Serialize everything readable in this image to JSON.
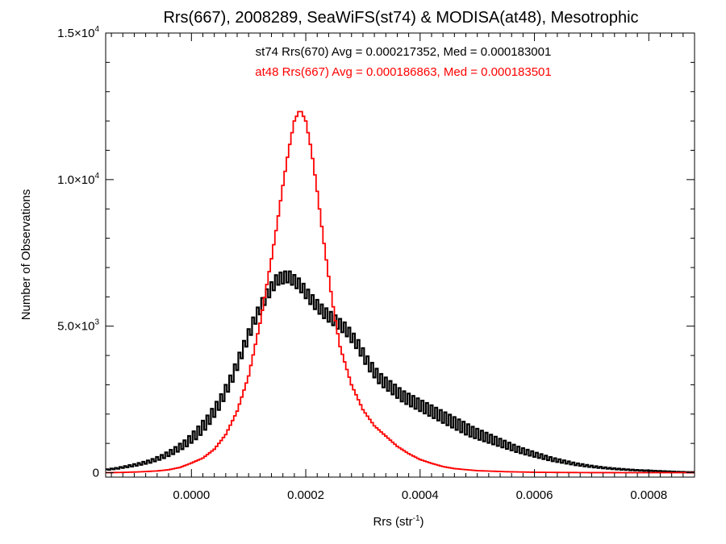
{
  "chart_data": {
    "type": "line",
    "title": "Rrs(667), 2008289, SeaWiFS(st74) & MODISA(at48), Mesotrophic",
    "xlabel": "Rrs (str",
    "xlabel_sup": "-1",
    "xlabel_close": ")",
    "ylabel": "Number of Observations",
    "xlim": [
      -0.00015,
      0.00088
    ],
    "ylim": [
      -150,
      15000
    ],
    "x_ticks": [
      {
        "value": 0.0,
        "label": "0.0000"
      },
      {
        "value": 0.0002,
        "label": "0.0002"
      },
      {
        "value": 0.0004,
        "label": "0.0004"
      },
      {
        "value": 0.0006,
        "label": "0.0006"
      },
      {
        "value": 0.0008,
        "label": "0.0008"
      }
    ],
    "y_ticks": [
      {
        "value": 0,
        "mantissa": "0",
        "exp": ""
      },
      {
        "value": 5000,
        "mantissa": "5.0×10",
        "exp": "3"
      },
      {
        "value": 10000,
        "mantissa": "1.0×10",
        "exp": "4"
      },
      {
        "value": 15000,
        "mantissa": "1.5×10",
        "exp": "4"
      }
    ],
    "grid": false,
    "annotations": [
      {
        "text": "st74 Rrs(670) Avg = 0.000217352, Med = 0.000183001",
        "color": "#000000"
      },
      {
        "text": "at48 Rrs(667) Avg = 0.000186863, Med = 0.000183501",
        "color": "#ff0000"
      }
    ],
    "series": [
      {
        "color": "#000000",
        "bin_width": 4e-06,
        "x": [
          -0.00015,
          -0.00013,
          -0.00011,
          -9e-05,
          -7e-05,
          -5e-05,
          -3e-05,
          -1e-05,
          1e-05,
          3e-05,
          5e-05,
          7e-05,
          9e-05,
          0.00011,
          0.00013,
          0.00015,
          0.00017,
          0.00019,
          0.00021,
          0.00023,
          0.00025,
          0.00027,
          0.00029,
          0.00031,
          0.00033,
          0.00035,
          0.00037,
          0.00039,
          0.00041,
          0.00043,
          0.00045,
          0.00047,
          0.00049,
          0.00051,
          0.00053,
          0.00055,
          0.00057,
          0.00059,
          0.00061,
          0.00063,
          0.00065,
          0.00067,
          0.00069,
          0.00071,
          0.00073,
          0.00075,
          0.00077,
          0.00079,
          0.00081,
          0.00083,
          0.00085,
          0.00087
        ],
        "y": [
          100,
          150,
          220,
          300,
          400,
          550,
          750,
          1000,
          1350,
          1800,
          2400,
          3200,
          4200,
          5200,
          6000,
          6600,
          6700,
          6400,
          5900,
          5500,
          5200,
          4900,
          4400,
          3700,
          3200,
          2900,
          2600,
          2400,
          2200,
          2000,
          1800,
          1600,
          1400,
          1250,
          1100,
          950,
          800,
          680,
          570,
          460,
          380,
          300,
          240,
          190,
          150,
          120,
          95,
          75,
          60,
          45,
          30,
          20
        ],
        "jitter": 200
      },
      {
        "color": "#ff0000",
        "bin_width": 4e-06,
        "x": [
          -0.00015,
          -0.00012,
          -9e-05,
          -6e-05,
          -4e-05,
          -2e-05,
          0.0,
          2e-05,
          4e-05,
          6e-05,
          8e-05,
          0.0001,
          0.00012,
          0.00014,
          0.00015,
          0.00016,
          0.00017,
          0.00018,
          0.00019,
          0.0002,
          0.00021,
          0.00022,
          0.00023,
          0.00024,
          0.00025,
          0.00026,
          0.00028,
          0.0003,
          0.00032,
          0.00034,
          0.00036,
          0.00038,
          0.0004,
          0.00042,
          0.00044,
          0.00046,
          0.0005,
          0.00055,
          0.0006,
          0.00065,
          0.0007,
          0.00088
        ],
        "y": [
          0,
          10,
          30,
          60,
          100,
          180,
          330,
          500,
          800,
          1300,
          2100,
          3300,
          5100,
          7300,
          8500,
          9800,
          11000,
          12000,
          12400,
          12000,
          11000,
          9600,
          8100,
          6700,
          5400,
          4300,
          3000,
          2150,
          1600,
          1250,
          900,
          650,
          450,
          320,
          210,
          140,
          70,
          35,
          15,
          8,
          3,
          0
        ],
        "jitter": 0
      }
    ]
  }
}
